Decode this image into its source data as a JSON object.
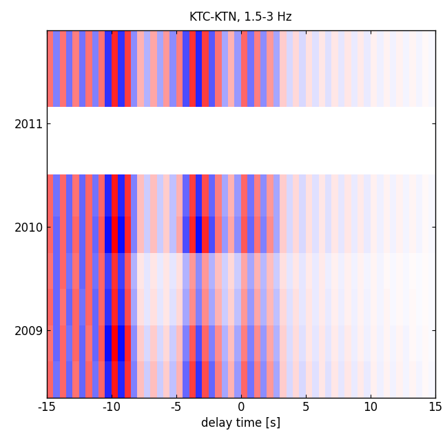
{
  "chart_data": {
    "type": "heatmap",
    "title": "KTC-KTN, 1.5-3 Hz",
    "x_label": "delay time [s]",
    "xlim": [
      -15,
      15
    ],
    "xticks": [
      -15,
      -10,
      -5,
      0,
      5,
      10,
      15
    ],
    "ylim": [
      2008.35,
      2011.9
    ],
    "yticks": [
      2009,
      2010,
      2011
    ],
    "value_range": [
      -1,
      1
    ],
    "x_edges": [
      -15,
      -14.5,
      -14,
      -13.5,
      -13,
      -12.5,
      -12,
      -11.5,
      -11,
      -10.5,
      -10,
      -9.5,
      -9,
      -8.5,
      -8,
      -7.5,
      -7,
      -6.5,
      -6,
      -5.5,
      -5,
      -4.5,
      -4,
      -3.5,
      -3,
      -2.5,
      -2,
      -1.5,
      -1,
      -0.5,
      0,
      0.5,
      1,
      1.5,
      2,
      2.5,
      3,
      3.5,
      4,
      4.5,
      5,
      5.5,
      6,
      6.5,
      7,
      7.5,
      8,
      8.5,
      9,
      9.5,
      10,
      10.5,
      11,
      11.5,
      12,
      12.5,
      13,
      13.5,
      14,
      14.5,
      15
    ],
    "y_edges": [
      2008.35,
      2008.7,
      2009.05,
      2009.4,
      2009.75,
      2010.1,
      2010.51,
      2011.16,
      2011.5,
      2011.9
    ],
    "cells": [
      [
        0.6,
        -0.55,
        0.6,
        -0.6,
        0.55,
        -0.6,
        0.6,
        -0.55,
        0.6,
        -0.85,
        0.9,
        -0.85,
        0.8,
        -0.5,
        0.25,
        -0.2,
        0.25,
        -0.2,
        0.2,
        -0.25,
        0.3,
        -0.6,
        0.75,
        -0.8,
        0.7,
        -0.6,
        0.5,
        -0.35,
        0.3,
        -0.4,
        0.6,
        -0.55,
        0.5,
        -0.45,
        0.4,
        -0.35,
        0.2,
        -0.15,
        0.15,
        -0.15,
        0.12,
        -0.12,
        0.1,
        -0.12,
        0.1,
        -0.1,
        0.1,
        -0.08,
        0.08,
        -0.08,
        0.06,
        -0.06,
        0.05,
        -0.05,
        0.05,
        -0.04,
        0.04,
        -0.04,
        0.03,
        -0.03
      ],
      [
        0.55,
        -0.6,
        0.6,
        -0.55,
        0.6,
        -0.6,
        0.55,
        -0.6,
        0.65,
        -0.95,
        1.0,
        -0.95,
        0.85,
        -0.45,
        0.2,
        -0.15,
        0.2,
        -0.15,
        0.15,
        -0.2,
        0.25,
        -0.5,
        0.65,
        -0.7,
        0.6,
        -0.5,
        0.45,
        -0.3,
        0.25,
        -0.35,
        0.5,
        -0.5,
        0.45,
        -0.4,
        0.35,
        -0.3,
        0.18,
        -0.14,
        0.14,
        -0.12,
        0.1,
        -0.1,
        0.1,
        -0.1,
        0.08,
        -0.08,
        0.08,
        -0.07,
        0.06,
        -0.06,
        0.05,
        -0.05,
        0.04,
        -0.04,
        0.04,
        -0.04,
        0.03,
        -0.03,
        0.03,
        -0.02
      ],
      [
        0.6,
        -0.6,
        0.55,
        -0.6,
        0.6,
        -0.55,
        0.6,
        -0.6,
        0.6,
        -0.8,
        0.85,
        -0.8,
        0.7,
        -0.35,
        0.12,
        -0.1,
        0.12,
        -0.1,
        0.1,
        -0.12,
        0.15,
        -0.35,
        0.45,
        -0.5,
        0.45,
        -0.35,
        0.3,
        -0.2,
        0.18,
        -0.25,
        0.4,
        -0.4,
        0.35,
        -0.3,
        0.28,
        -0.25,
        0.15,
        -0.12,
        0.12,
        -0.1,
        0.1,
        -0.08,
        0.08,
        -0.08,
        0.07,
        -0.07,
        0.06,
        -0.06,
        0.05,
        -0.05,
        0.04,
        -0.04,
        0.04,
        -0.03,
        0.03,
        -0.03,
        0.03,
        -0.02,
        0.02,
        -0.02
      ],
      [
        0.55,
        -0.6,
        0.6,
        -0.55,
        0.55,
        -0.6,
        0.6,
        -0.55,
        0.6,
        -0.75,
        0.8,
        -0.75,
        0.65,
        -0.3,
        0.1,
        -0.1,
        0.1,
        -0.08,
        0.1,
        -0.1,
        0.12,
        -0.3,
        0.4,
        -0.45,
        0.4,
        -0.3,
        0.25,
        -0.18,
        0.15,
        -0.2,
        0.35,
        -0.35,
        0.3,
        -0.28,
        0.25,
        -0.2,
        0.12,
        -0.1,
        0.1,
        -0.1,
        0.08,
        -0.08,
        0.08,
        -0.07,
        0.06,
        -0.06,
        0.06,
        -0.05,
        0.05,
        -0.04,
        0.04,
        -0.04,
        0.03,
        -0.03,
        0.03,
        -0.03,
        0.02,
        -0.02,
        0.02,
        -0.02
      ],
      [
        0.6,
        -0.6,
        0.6,
        -0.6,
        0.6,
        -0.6,
        0.6,
        -0.6,
        0.65,
        -0.95,
        1.0,
        -0.95,
        0.85,
        -0.5,
        0.25,
        -0.2,
        0.25,
        -0.2,
        0.2,
        -0.25,
        0.35,
        -0.7,
        0.85,
        -0.95,
        0.85,
        -0.7,
        0.55,
        -0.4,
        0.35,
        -0.45,
        0.65,
        -0.6,
        0.55,
        -0.5,
        0.45,
        -0.35,
        0.2,
        -0.15,
        0.15,
        -0.15,
        0.12,
        -0.12,
        0.1,
        -0.12,
        0.1,
        -0.1,
        0.1,
        -0.08,
        0.08,
        -0.08,
        0.06,
        -0.06,
        0.05,
        -0.05,
        0.05,
        -0.04,
        0.04,
        -0.04,
        0.03,
        -0.03
      ],
      [
        0.6,
        -0.55,
        0.6,
        -0.6,
        0.55,
        -0.6,
        0.6,
        -0.55,
        0.6,
        -0.85,
        0.9,
        -0.85,
        0.8,
        -0.5,
        0.25,
        -0.2,
        0.25,
        -0.2,
        0.2,
        -0.25,
        0.3,
        -0.6,
        0.75,
        -0.8,
        0.7,
        -0.6,
        0.5,
        -0.35,
        0.3,
        -0.4,
        0.6,
        -0.55,
        0.5,
        -0.45,
        0.4,
        -0.35,
        0.2,
        -0.15,
        0.15,
        -0.15,
        0.12,
        -0.12,
        0.1,
        -0.12,
        0.1,
        -0.1,
        0.1,
        -0.08,
        0.08,
        -0.08,
        0.06,
        -0.06,
        0.05,
        -0.05,
        0.05,
        -0.04,
        0.04,
        -0.04,
        0.03,
        -0.03
      ],
      [
        null,
        null,
        null,
        null,
        null,
        null,
        null,
        null,
        null,
        null,
        null,
        null,
        null,
        null,
        null,
        null,
        null,
        null,
        null,
        null,
        null,
        null,
        null,
        null,
        null,
        null,
        null,
        null,
        null,
        null,
        null,
        null,
        null,
        null,
        null,
        null,
        null,
        null,
        null,
        null,
        null,
        null,
        null,
        null,
        null,
        null,
        null,
        null,
        null,
        null,
        null,
        null,
        null,
        null,
        null,
        null,
        null,
        null,
        null,
        null
      ],
      [
        0.55,
        -0.5,
        0.55,
        -0.55,
        0.5,
        -0.55,
        0.55,
        -0.5,
        0.55,
        -0.8,
        0.85,
        -0.8,
        0.75,
        -0.45,
        0.3,
        -0.3,
        0.35,
        -0.35,
        0.4,
        -0.45,
        0.5,
        -0.7,
        0.8,
        -0.85,
        0.75,
        -0.65,
        0.55,
        -0.35,
        0.3,
        -0.4,
        0.6,
        -0.55,
        0.5,
        -0.45,
        0.4,
        -0.35,
        0.2,
        -0.15,
        0.15,
        -0.15,
        0.12,
        -0.12,
        0.1,
        -0.12,
        0.1,
        -0.1,
        0.1,
        -0.08,
        0.08,
        -0.08,
        0.06,
        -0.06,
        0.05,
        -0.05,
        0.05,
        -0.04,
        0.04,
        -0.04,
        0.03,
        -0.03
      ],
      [
        0.55,
        -0.5,
        0.55,
        -0.55,
        0.5,
        -0.55,
        0.55,
        -0.5,
        0.55,
        -0.8,
        0.85,
        -0.8,
        0.75,
        -0.45,
        0.3,
        -0.3,
        0.35,
        -0.35,
        0.4,
        -0.45,
        0.5,
        -0.7,
        0.8,
        -0.85,
        0.75,
        -0.65,
        0.55,
        -0.35,
        0.3,
        -0.4,
        0.6,
        -0.55,
        0.5,
        -0.45,
        0.4,
        -0.35,
        0.2,
        -0.15,
        0.15,
        -0.15,
        0.12,
        -0.12,
        0.1,
        -0.12,
        0.1,
        -0.1,
        0.1,
        -0.08,
        0.08,
        -0.08,
        0.06,
        -0.06,
        0.05,
        -0.05,
        0.05,
        -0.04,
        0.04,
        -0.04,
        0.03,
        -0.03
      ]
    ]
  }
}
